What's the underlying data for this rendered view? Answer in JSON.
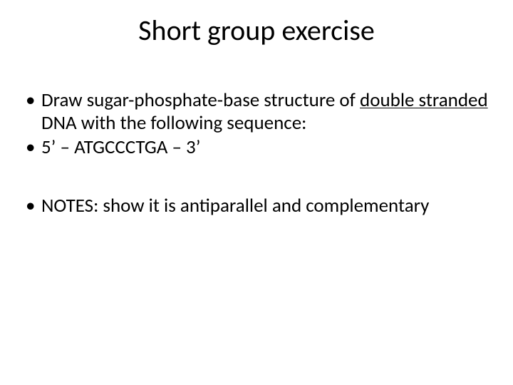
{
  "title": {
    "text": "Short group exercise",
    "fontsize": 40,
    "color": "#000000"
  },
  "body": {
    "fontsize": 27,
    "color": "#000000",
    "bullet_color": "#000000",
    "items": [
      {
        "segments": [
          {
            "text": "Draw sugar-phosphate-base structure of ",
            "underline": false
          },
          {
            "text": "double stranded",
            "underline": true
          },
          {
            "text": " DNA with the following sequence:",
            "underline": false
          }
        ]
      },
      {
        "segments": [
          {
            "text": "5’ – ATGCCCTGA – 3’",
            "underline": false
          }
        ]
      },
      {
        "spacer": true
      },
      {
        "segments": [
          {
            "text": "NOTES: show it is antiparallel and complementary",
            "underline": false
          }
        ]
      }
    ]
  },
  "background_color": "#ffffff"
}
